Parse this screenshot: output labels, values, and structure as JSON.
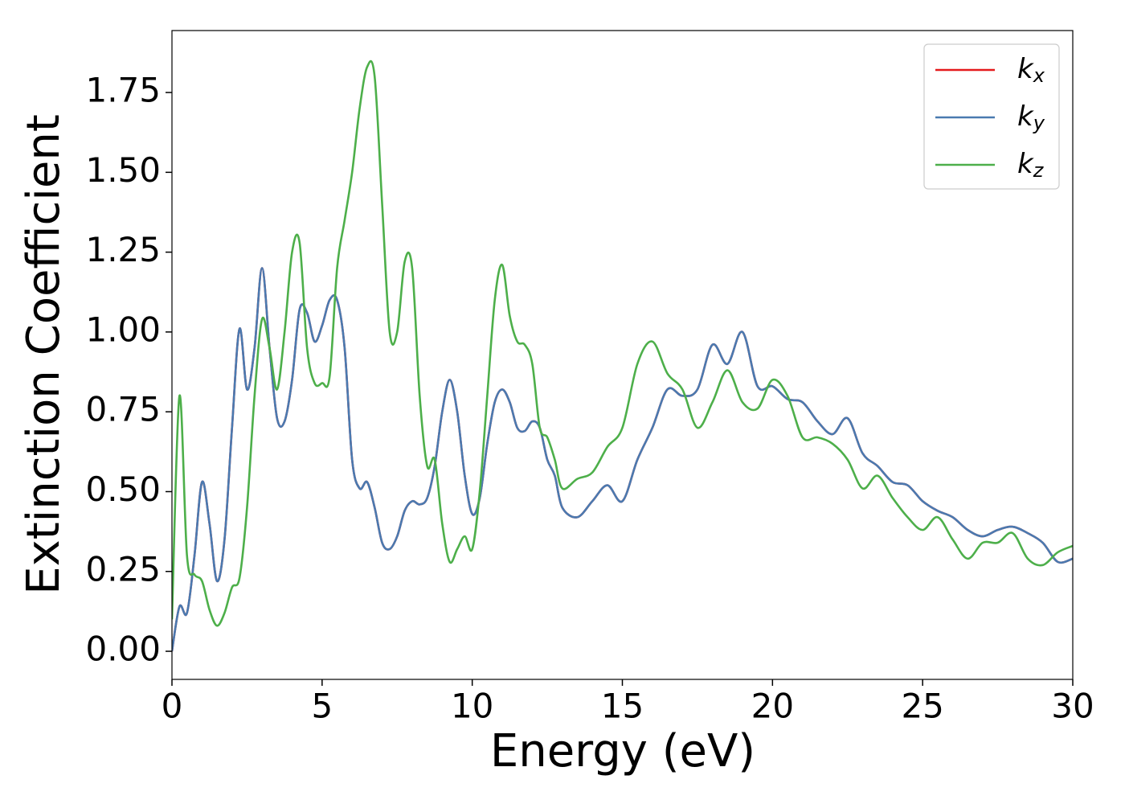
{
  "chart_data": {
    "type": "line",
    "xlabel": "Energy (eV)",
    "ylabel": "Extinction Coefficient",
    "xlim": [
      0,
      30
    ],
    "ylim": [
      -0.088,
      1.944
    ],
    "xticks": [
      0,
      5,
      10,
      15,
      20,
      25,
      30
    ],
    "yticks": [
      {
        "value": 0,
        "label": "0.00"
      },
      {
        "value": 0.25,
        "label": "0.25"
      },
      {
        "value": 0.5,
        "label": "0.50"
      },
      {
        "value": 0.75,
        "label": "0.75"
      },
      {
        "value": 1,
        "label": "1.00"
      },
      {
        "value": 1.25,
        "label": "1.25"
      },
      {
        "value": 1.5,
        "label": "1.50"
      },
      {
        "value": 1.75,
        "label": "1.75"
      }
    ],
    "legend": "upper right",
    "x": [
      0,
      0.25,
      0.5,
      0.75,
      1,
      1.25,
      1.5,
      1.75,
      2,
      2.25,
      2.5,
      2.75,
      3,
      3.25,
      3.5,
      3.75,
      4,
      4.25,
      4.5,
      4.75,
      5,
      5.25,
      5.5,
      5.75,
      6,
      6.25,
      6.5,
      6.75,
      7,
      7.25,
      7.5,
      7.75,
      8,
      8.25,
      8.5,
      8.75,
      9,
      9.25,
      9.5,
      9.75,
      10,
      10.25,
      10.5,
      10.75,
      11,
      11.25,
      11.5,
      11.75,
      12,
      12.25,
      12.5,
      12.75,
      13,
      13.5,
      14,
      14.5,
      15,
      15.5,
      16,
      16.5,
      17,
      17.5,
      18,
      18.5,
      19,
      19.5,
      20,
      20.5,
      21,
      21.5,
      22,
      22.5,
      23,
      23.5,
      24,
      24.5,
      25,
      25.5,
      26,
      26.5,
      27,
      27.5,
      28,
      28.5,
      29,
      29.5,
      30
    ],
    "series": [
      {
        "name": "kx",
        "color": "#e41a1c",
        "values": [
          0.0,
          0.14,
          0.12,
          0.3,
          0.53,
          0.4,
          0.22,
          0.35,
          0.7,
          1.01,
          0.82,
          0.95,
          1.2,
          0.95,
          0.73,
          0.72,
          0.85,
          1.07,
          1.06,
          0.97,
          1.02,
          1.1,
          1.1,
          0.95,
          0.6,
          0.51,
          0.53,
          0.45,
          0.34,
          0.32,
          0.36,
          0.44,
          0.47,
          0.46,
          0.48,
          0.58,
          0.75,
          0.85,
          0.75,
          0.55,
          0.43,
          0.48,
          0.65,
          0.78,
          0.82,
          0.78,
          0.7,
          0.69,
          0.72,
          0.7,
          0.6,
          0.55,
          0.45,
          0.42,
          0.47,
          0.52,
          0.47,
          0.6,
          0.7,
          0.82,
          0.8,
          0.82,
          0.96,
          0.9,
          1.0,
          0.83,
          0.83,
          0.79,
          0.78,
          0.72,
          0.68,
          0.73,
          0.62,
          0.58,
          0.53,
          0.52,
          0.47,
          0.44,
          0.42,
          0.38,
          0.36,
          0.38,
          0.39,
          0.37,
          0.34,
          0.28,
          0.29
        ]
      },
      {
        "name": "ky",
        "color": "#4a7ab0",
        "values": [
          0.0,
          0.14,
          0.12,
          0.3,
          0.53,
          0.4,
          0.22,
          0.35,
          0.7,
          1.01,
          0.82,
          0.95,
          1.2,
          0.95,
          0.73,
          0.72,
          0.85,
          1.07,
          1.06,
          0.97,
          1.02,
          1.1,
          1.1,
          0.95,
          0.6,
          0.51,
          0.53,
          0.45,
          0.34,
          0.32,
          0.36,
          0.44,
          0.47,
          0.46,
          0.48,
          0.58,
          0.75,
          0.85,
          0.75,
          0.55,
          0.43,
          0.48,
          0.65,
          0.78,
          0.82,
          0.78,
          0.7,
          0.69,
          0.72,
          0.7,
          0.6,
          0.55,
          0.45,
          0.42,
          0.47,
          0.52,
          0.47,
          0.6,
          0.7,
          0.82,
          0.8,
          0.82,
          0.96,
          0.9,
          1.0,
          0.83,
          0.83,
          0.79,
          0.78,
          0.72,
          0.68,
          0.73,
          0.62,
          0.58,
          0.53,
          0.52,
          0.47,
          0.44,
          0.42,
          0.38,
          0.36,
          0.38,
          0.39,
          0.37,
          0.34,
          0.28,
          0.29
        ]
      },
      {
        "name": "kz",
        "color": "#4daf4a",
        "values": [
          0.1,
          0.8,
          0.3,
          0.24,
          0.22,
          0.13,
          0.08,
          0.12,
          0.2,
          0.23,
          0.45,
          0.8,
          1.04,
          0.95,
          0.82,
          1.0,
          1.25,
          1.28,
          0.95,
          0.84,
          0.84,
          0.86,
          1.2,
          1.35,
          1.5,
          1.7,
          1.83,
          1.8,
          1.4,
          1.0,
          1.0,
          1.22,
          1.2,
          0.8,
          0.58,
          0.6,
          0.4,
          0.28,
          0.32,
          0.36,
          0.32,
          0.5,
          0.8,
          1.1,
          1.21,
          1.05,
          0.97,
          0.96,
          0.9,
          0.7,
          0.67,
          0.6,
          0.51,
          0.54,
          0.56,
          0.64,
          0.7,
          0.9,
          0.97,
          0.87,
          0.82,
          0.7,
          0.78,
          0.88,
          0.78,
          0.76,
          0.85,
          0.8,
          0.67,
          0.67,
          0.65,
          0.6,
          0.51,
          0.55,
          0.48,
          0.42,
          0.38,
          0.42,
          0.35,
          0.29,
          0.34,
          0.34,
          0.37,
          0.29,
          0.27,
          0.31,
          0.33
        ]
      }
    ]
  }
}
